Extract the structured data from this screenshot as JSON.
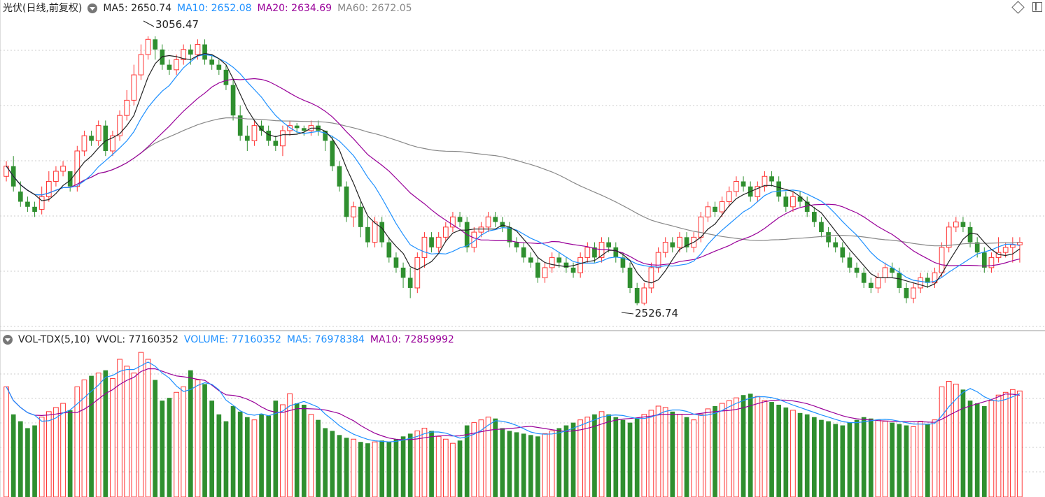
{
  "main": {
    "title": "光伏(日线,前复权)",
    "ma5": "MA5: 2650.74",
    "ma10": "MA10: 2652.08",
    "ma20": "MA20: 2634.69",
    "ma60": "MA60: 2672.05",
    "high_label": "3056.47",
    "low_label": "2526.74"
  },
  "volume": {
    "title": "VOL-TDX(5,10)",
    "vvol": "VVOL: 77160352",
    "volume": "VOLUME: 77160352",
    "ma5": "MA5: 76978384",
    "ma10": "MA10: 72859992"
  },
  "colors": {
    "up": "#ff3333",
    "down": "#2f8f2f",
    "ma5": "#222222",
    "ma10": "#1e90ff",
    "ma20": "#990099",
    "ma60": "#888888"
  },
  "icons": [
    "chevron-down-icon",
    "diamond-icon",
    "window-icon"
  ],
  "chart_data": {
    "type": "candlestick",
    "title": "光伏(日线,前复权)",
    "price_range": [
      2480,
      3100
    ],
    "annotations": [
      {
        "label": "3056.47",
        "value": 3056.47
      },
      {
        "label": "2526.74",
        "value": 2526.74
      }
    ],
    "candles": [
      [
        2780,
        2800,
        2810,
        2770,
        80
      ],
      [
        2800,
        2760,
        2820,
        2750,
        60
      ],
      [
        2750,
        2730,
        2770,
        2720,
        55
      ],
      [
        2730,
        2720,
        2740,
        2710,
        50
      ],
      [
        2720,
        2710,
        2730,
        2700,
        52
      ],
      [
        2715,
        2740,
        2760,
        2705,
        58
      ],
      [
        2740,
        2770,
        2790,
        2730,
        62
      ],
      [
        2770,
        2790,
        2800,
        2760,
        65
      ],
      [
        2790,
        2800,
        2810,
        2780,
        68
      ],
      [
        2790,
        2760,
        2790,
        2750,
        63
      ],
      [
        2760,
        2830,
        2840,
        2750,
        80
      ],
      [
        2830,
        2860,
        2870,
        2820,
        85
      ],
      [
        2860,
        2850,
        2870,
        2840,
        88
      ],
      [
        2850,
        2880,
        2890,
        2840,
        90
      ],
      [
        2880,
        2830,
        2890,
        2820,
        92
      ],
      [
        2830,
        2860,
        2870,
        2820,
        86
      ],
      [
        2860,
        2900,
        2910,
        2850,
        100
      ],
      [
        2900,
        2930,
        2950,
        2890,
        95
      ],
      [
        2930,
        2980,
        3000,
        2920,
        90
      ],
      [
        2980,
        3020,
        3040,
        2970,
        105
      ],
      [
        3020,
        3050,
        3056,
        3010,
        100
      ],
      [
        3050,
        3030,
        3056,
        3010,
        85
      ],
      [
        3030,
        3000,
        3040,
        2990,
        70
      ],
      [
        3000,
        2990,
        3010,
        2980,
        72
      ],
      [
        2990,
        3010,
        3020,
        2980,
        76
      ],
      [
        3010,
        3030,
        3040,
        3000,
        80
      ],
      [
        3030,
        3020,
        3040,
        3000,
        92
      ],
      [
        3020,
        3040,
        3050,
        3010,
        85
      ],
      [
        3040,
        3010,
        3050,
        3000,
        82
      ],
      [
        3010,
        3000,
        3020,
        2990,
        70
      ],
      [
        3000,
        2990,
        3010,
        2980,
        60
      ],
      [
        2990,
        2960,
        3000,
        2950,
        55
      ],
      [
        2960,
        2900,
        2970,
        2890,
        66
      ],
      [
        2900,
        2860,
        2920,
        2850,
        62
      ],
      [
        2860,
        2850,
        2880,
        2830,
        58
      ],
      [
        2850,
        2880,
        2890,
        2840,
        56
      ],
      [
        2880,
        2870,
        2890,
        2860,
        60
      ],
      [
        2870,
        2850,
        2880,
        2840,
        59
      ],
      [
        2850,
        2840,
        2860,
        2830,
        70
      ],
      [
        2840,
        2870,
        2880,
        2820,
        67
      ],
      [
        2870,
        2880,
        2890,
        2860,
        75
      ],
      [
        2880,
        2875,
        2885,
        2865,
        68
      ],
      [
        2875,
        2870,
        2880,
        2860,
        67
      ],
      [
        2870,
        2880,
        2890,
        2860,
        60
      ],
      [
        2880,
        2870,
        2890,
        2860,
        56
      ],
      [
        2870,
        2850,
        2870,
        2830,
        50
      ],
      [
        2850,
        2800,
        2860,
        2790,
        48
      ],
      [
        2800,
        2760,
        2810,
        2750,
        45
      ],
      [
        2760,
        2700,
        2770,
        2690,
        43
      ],
      [
        2700,
        2720,
        2730,
        2680,
        42
      ],
      [
        2720,
        2680,
        2730,
        2660,
        40
      ],
      [
        2680,
        2650,
        2700,
        2640,
        39
      ],
      [
        2650,
        2690,
        2700,
        2640,
        40
      ],
      [
        2690,
        2650,
        2700,
        2640,
        41
      ],
      [
        2650,
        2620,
        2660,
        2610,
        40
      ],
      [
        2620,
        2600,
        2630,
        2590,
        42
      ],
      [
        2600,
        2580,
        2610,
        2560,
        44
      ],
      [
        2580,
        2560,
        2600,
        2540,
        46
      ],
      [
        2560,
        2620,
        2630,
        2550,
        48
      ],
      [
        2620,
        2660,
        2670,
        2600,
        50
      ],
      [
        2660,
        2640,
        2670,
        2630,
        48
      ],
      [
        2640,
        2660,
        2670,
        2630,
        44
      ],
      [
        2660,
        2680,
        2690,
        2650,
        42
      ],
      [
        2680,
        2700,
        2710,
        2670,
        39
      ],
      [
        2700,
        2690,
        2710,
        2680,
        41
      ],
      [
        2690,
        2640,
        2700,
        2630,
        52
      ],
      [
        2640,
        2670,
        2680,
        2630,
        54
      ],
      [
        2670,
        2680,
        2690,
        2660,
        56
      ],
      [
        2680,
        2700,
        2710,
        2670,
        58
      ],
      [
        2700,
        2690,
        2710,
        2680,
        57
      ],
      [
        2690,
        2680,
        2700,
        2670,
        50
      ],
      [
        2680,
        2650,
        2690,
        2640,
        48
      ],
      [
        2650,
        2640,
        2660,
        2630,
        47
      ],
      [
        2640,
        2620,
        2650,
        2610,
        46
      ],
      [
        2620,
        2610,
        2630,
        2600,
        45
      ],
      [
        2610,
        2580,
        2620,
        2570,
        44
      ],
      [
        2580,
        2600,
        2610,
        2570,
        46
      ],
      [
        2600,
        2620,
        2630,
        2590,
        48
      ],
      [
        2620,
        2610,
        2630,
        2600,
        50
      ],
      [
        2610,
        2600,
        2620,
        2590,
        52
      ],
      [
        2600,
        2590,
        2610,
        2580,
        54
      ],
      [
        2590,
        2620,
        2630,
        2580,
        56
      ],
      [
        2620,
        2640,
        2650,
        2610,
        58
      ],
      [
        2640,
        2620,
        2650,
        2610,
        60
      ],
      [
        2620,
        2650,
        2660,
        2610,
        62
      ],
      [
        2650,
        2640,
        2660,
        2630,
        60
      ],
      [
        2640,
        2620,
        2650,
        2610,
        58
      ],
      [
        2620,
        2600,
        2630,
        2590,
        56
      ],
      [
        2600,
        2560,
        2610,
        2550,
        54
      ],
      [
        2560,
        2530,
        2570,
        2526,
        57
      ],
      [
        2530,
        2560,
        2570,
        2526,
        60
      ],
      [
        2560,
        2600,
        2610,
        2550,
        63
      ],
      [
        2600,
        2630,
        2640,
        2590,
        66
      ],
      [
        2630,
        2650,
        2660,
        2620,
        65
      ],
      [
        2650,
        2640,
        2660,
        2630,
        62
      ],
      [
        2640,
        2660,
        2670,
        2630,
        60
      ],
      [
        2660,
        2640,
        2670,
        2630,
        58
      ],
      [
        2640,
        2660,
        2670,
        2630,
        56
      ],
      [
        2660,
        2700,
        2710,
        2650,
        60
      ],
      [
        2700,
        2720,
        2730,
        2690,
        64
      ],
      [
        2720,
        2710,
        2730,
        2700,
        66
      ],
      [
        2710,
        2730,
        2740,
        2700,
        68
      ],
      [
        2730,
        2750,
        2760,
        2720,
        70
      ],
      [
        2750,
        2770,
        2780,
        2740,
        72
      ],
      [
        2770,
        2760,
        2780,
        2750,
        74
      ],
      [
        2760,
        2740,
        2770,
        2730,
        75
      ],
      [
        2740,
        2760,
        2770,
        2730,
        73
      ],
      [
        2760,
        2780,
        2790,
        2750,
        70
      ],
      [
        2780,
        2770,
        2790,
        2760,
        69
      ],
      [
        2770,
        2740,
        2780,
        2730,
        67
      ],
      [
        2740,
        2720,
        2750,
        2710,
        65
      ],
      [
        2720,
        2740,
        2750,
        2710,
        63
      ],
      [
        2740,
        2730,
        2750,
        2720,
        61
      ],
      [
        2730,
        2710,
        2740,
        2700,
        60
      ],
      [
        2710,
        2690,
        2720,
        2680,
        58
      ],
      [
        2690,
        2670,
        2700,
        2660,
        56
      ],
      [
        2670,
        2650,
        2680,
        2640,
        55
      ],
      [
        2650,
        2640,
        2660,
        2630,
        53
      ],
      [
        2640,
        2620,
        2650,
        2610,
        52
      ],
      [
        2620,
        2600,
        2630,
        2590,
        54
      ],
      [
        2600,
        2590,
        2610,
        2580,
        56
      ],
      [
        2590,
        2570,
        2600,
        2560,
        58
      ],
      [
        2570,
        2560,
        2580,
        2550,
        57
      ],
      [
        2560,
        2580,
        2590,
        2550,
        56
      ],
      [
        2580,
        2600,
        2610,
        2570,
        55
      ],
      [
        2600,
        2590,
        2610,
        2580,
        54
      ],
      [
        2590,
        2560,
        2600,
        2550,
        53
      ],
      [
        2560,
        2540,
        2570,
        2530,
        52
      ],
      [
        2540,
        2560,
        2570,
        2530,
        51
      ],
      [
        2560,
        2580,
        2590,
        2550,
        55
      ],
      [
        2580,
        2570,
        2590,
        2560,
        53
      ],
      [
        2570,
        2590,
        2600,
        2560,
        56
      ],
      [
        2590,
        2640,
        2650,
        2580,
        80
      ],
      [
        2640,
        2680,
        2690,
        2630,
        84
      ],
      [
        2680,
        2690,
        2700,
        2670,
        82
      ],
      [
        2690,
        2680,
        2700,
        2670,
        78
      ],
      [
        2680,
        2650,
        2690,
        2640,
        70
      ],
      [
        2650,
        2630,
        2660,
        2620,
        68
      ],
      [
        2630,
        2600,
        2640,
        2590,
        66
      ],
      [
        2600,
        2620,
        2630,
        2590,
        70
      ],
      [
        2620,
        2630,
        2660,
        2610,
        74
      ],
      [
        2630,
        2640,
        2650,
        2620,
        76
      ],
      [
        2640,
        2645,
        2660,
        2610,
        78
      ],
      [
        2645,
        2650,
        2660,
        2610,
        77
      ]
    ]
  }
}
